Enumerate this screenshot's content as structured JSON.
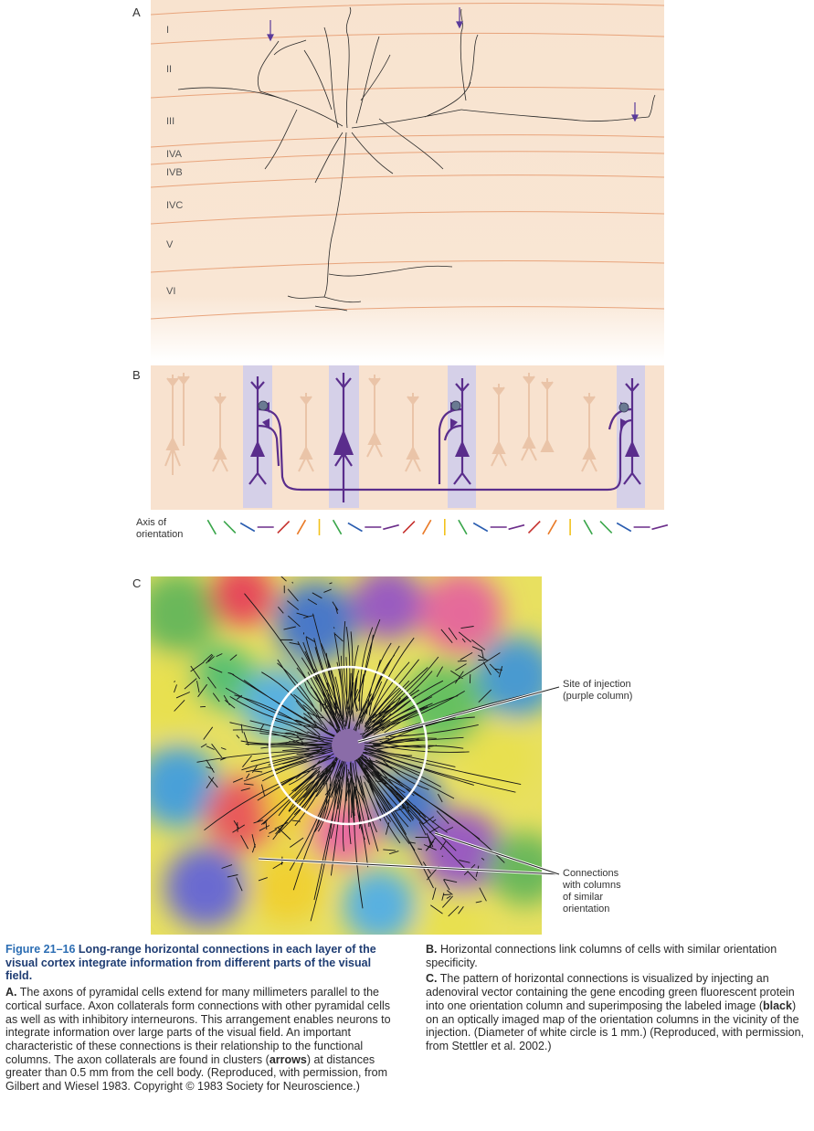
{
  "panel_labels": {
    "a": "A",
    "b": "B",
    "c": "C"
  },
  "layers": [
    "I",
    "II",
    "III",
    "IVA",
    "IVB",
    "IVC",
    "V",
    "VI"
  ],
  "orientation_label": {
    "line1": "Axis of",
    "line2": "orientation"
  },
  "orientation_colors": [
    "#3aa64b",
    "#3aa64b",
    "#2a5db0",
    "#6b2d8a",
    "#c5302d",
    "#e97a27",
    "#f2c21b",
    "#3aa64b",
    "#2a5db0",
    "#6b2d8a",
    "#6b2d8a",
    "#c5302d",
    "#e97a27",
    "#f2c21b",
    "#3aa64b",
    "#2a5db0",
    "#6b2d8a",
    "#6b2d8a",
    "#c5302d",
    "#e97a27",
    "#f2c21b",
    "#3aa64b",
    "#3aa64b",
    "#2a5db0",
    "#6b2d8a",
    "#6b2d8a"
  ],
  "annotations": {
    "injection_line1": "Site of injection",
    "injection_line2": "(purple column)",
    "connections_line1": "Connections",
    "connections_line2": "with columns",
    "connections_line3": "of similar",
    "connections_line4": "orientation"
  },
  "caption": {
    "figure_number": "Figure 21–16",
    "title": "Long-range horizontal connections in each layer of the visual cortex integrate information from different parts of the visual field.",
    "a_label": "A.",
    "a_text_1": "The axons of pyramidal cells extend for many millimeters parallel to the cortical surface. Axon collaterals form connections with other pyramidal cells as well as with inhibitory interneurons. This arrangement enables neurons to integrate information over large parts of the visual field. An important characteristic of these connections is their relationship to the functional columns. The axon collaterals are found in clusters (",
    "a_bold": "arrows",
    "a_text_2": ") at distances greater than 0.5 mm from the cell body. (Reproduced, with permission, from Gilbert and Wiesel 1983. Copyright © 1983 Society for Neuroscience.)",
    "b_label": "B.",
    "b_text": "Horizontal connections link columns of cells with similar orientation specificity.",
    "c_label": "C.",
    "c_text_1": "The pattern of horizontal connections is visualized by injecting an adenoviral vector containing the gene encoding green fluorescent protein into one orientation column and superimposing the labeled image (",
    "c_bold": "black",
    "c_text_2": ") on an optically imaged map of the orientation columns in the vicinity of the injection. (Diameter of white circle is 1 mm.) (Reproduced, with permission, from Stettler et al. 2002.)"
  }
}
